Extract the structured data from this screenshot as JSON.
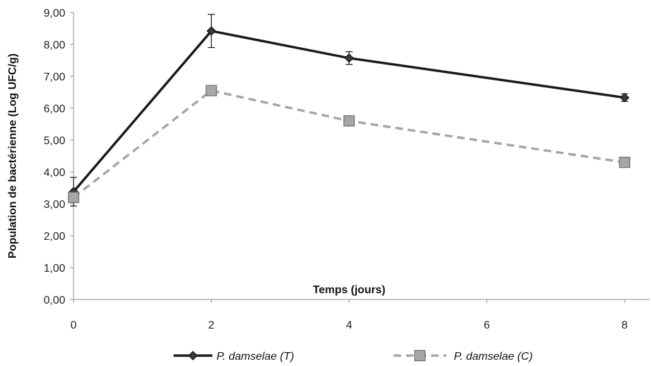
{
  "chart_data": {
    "type": "line",
    "x": [
      0,
      2,
      4,
      8
    ],
    "xlabel": "Temps (jours)",
    "ylabel": "Population de bactérienne (Log UFC/g)",
    "xlim": [
      0,
      8
    ],
    "ylim": [
      0,
      9
    ],
    "xticks": [
      "0",
      "2",
      "4",
      "6",
      "8"
    ],
    "yticks": [
      "0,00",
      "1,00",
      "2,00",
      "3,00",
      "4,00",
      "5,00",
      "6,00",
      "7,00",
      "8,00",
      "9,00"
    ],
    "grid": false,
    "legend_position": "bottom",
    "series": [
      {
        "name": "P. damselae (T)",
        "values": [
          3.38,
          8.42,
          7.57,
          6.33
        ],
        "error": [
          0.45,
          0.52,
          0.2,
          0.12
        ],
        "color": "#1a1a1a",
        "line_style": "solid",
        "marker": "diamond"
      },
      {
        "name": "P. damselae (C)",
        "values": [
          3.2,
          6.55,
          5.6,
          4.3
        ],
        "color": "#a6a6a6",
        "line_style": "dashed",
        "marker": "square"
      }
    ]
  }
}
